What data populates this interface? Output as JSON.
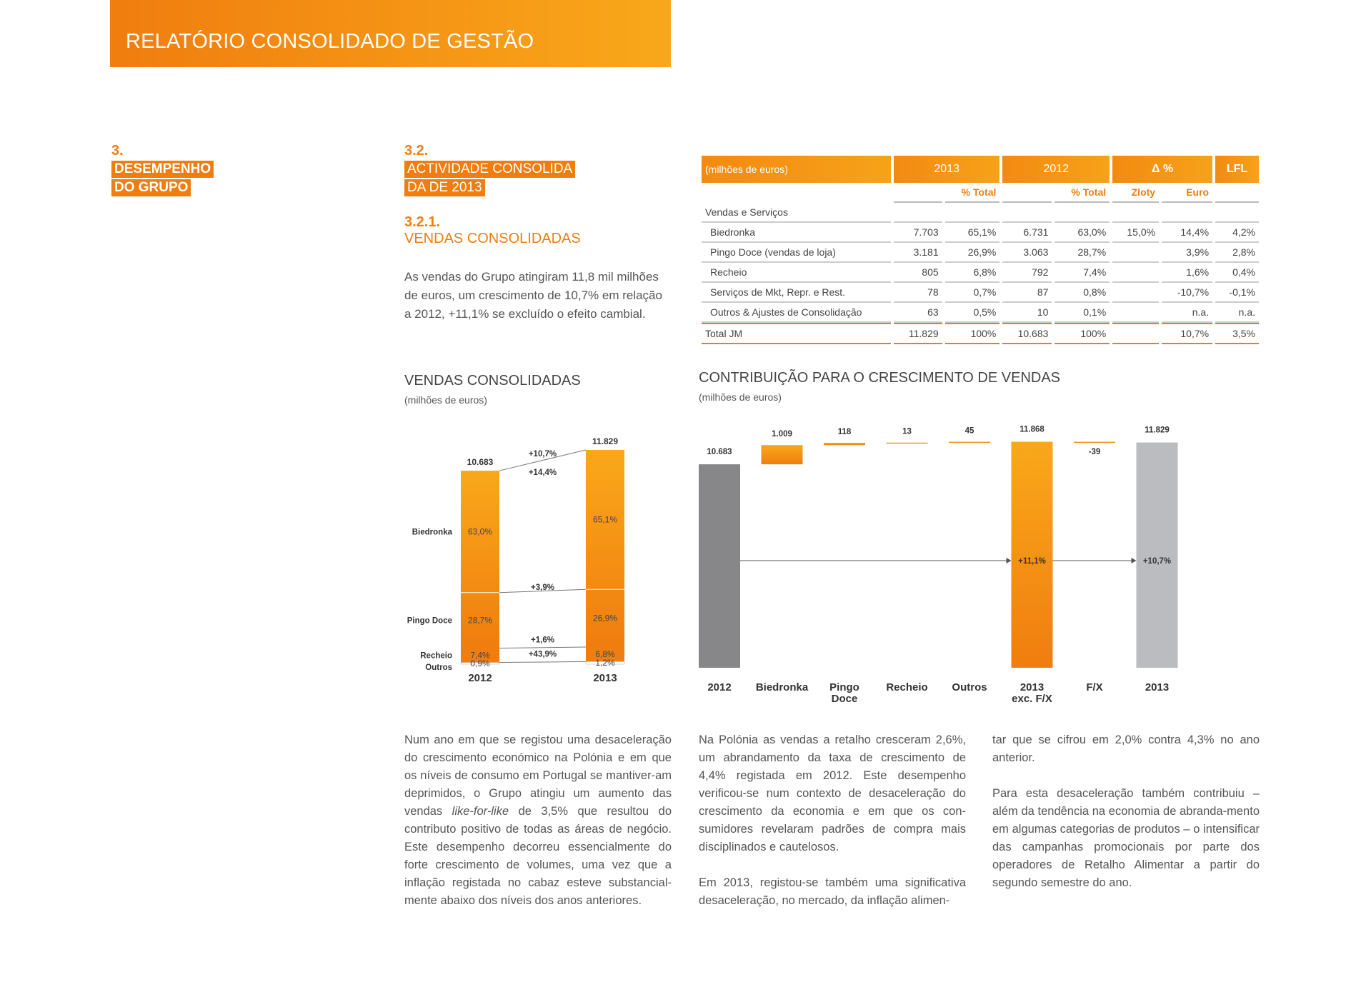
{
  "header": {
    "title": "RELATÓRIO CONSOLIDADO DE GESTÃO"
  },
  "section": {
    "number": "3.",
    "title_line1": "DESEMPENHO",
    "title_line2": "DO GRUPO"
  },
  "subsection": {
    "number": "3.2.",
    "title_line1": "ACTIVIDADE CONSOLIDA",
    "title_line2": "DA DE 2013"
  },
  "subsubsection": {
    "number": "3.2.1.",
    "title": "VENDAS CONSOLIDADAS"
  },
  "intro_text": "As vendas do Grupo atingiram 11,8 mil milhões de euros, um crescimento de 10,7% em relação a 2012, +11,1% se excluído o efeito cambial.",
  "table": {
    "header": {
      "unit": "(milhões de euros)",
      "y2013": "2013",
      "y2012": "2012",
      "delta": "Δ %",
      "lfl": "LFL"
    },
    "subheader": {
      "pct_total_2013": "% Total",
      "pct_total_2012": "% Total",
      "zloty": "Zloty",
      "euro": "Euro"
    },
    "group_label": "Vendas e Serviços",
    "rows": [
      {
        "label": "Biedronka",
        "v2013": "7.703",
        "p2013": "65,1%",
        "v2012": "6.731",
        "p2012": "63,0%",
        "zloty": "15,0%",
        "euro": "14,4%",
        "lfl": "4,2%"
      },
      {
        "label": "Pingo Doce (vendas de loja)",
        "v2013": "3.181",
        "p2013": "26,9%",
        "v2012": "3.063",
        "p2012": "28,7%",
        "zloty": "",
        "euro": "3,9%",
        "lfl": "2,8%"
      },
      {
        "label": "Recheio",
        "v2013": "805",
        "p2013": "6,8%",
        "v2012": "792",
        "p2012": "7,4%",
        "zloty": "",
        "euro": "1,6%",
        "lfl": "0,4%"
      },
      {
        "label": "Serviços de Mkt, Repr. e Rest.",
        "v2013": "78",
        "p2013": "0,7%",
        "v2012": "87",
        "p2012": "0,8%",
        "zloty": "",
        "euro": "-10,7%",
        "lfl": "-0,1%"
      },
      {
        "label": "Outros & Ajustes de Consolidação",
        "v2013": "63",
        "p2013": "0,5%",
        "v2012": "10",
        "p2012": "0,1%",
        "zloty": "",
        "euro": "n.a.",
        "lfl": "n.a."
      }
    ],
    "total": {
      "label": "Total JM",
      "v2013": "11.829",
      "p2013": "100%",
      "v2012": "10.683",
      "p2012": "100%",
      "zloty": "",
      "euro": "10,7%",
      "lfl": "3,5%"
    }
  },
  "chart_data": [
    {
      "type": "bar",
      "title": "VENDAS CONSOLIDADAS",
      "subtitle": "(milhões de euros)",
      "categories": [
        "2012",
        "2013"
      ],
      "totals": [
        10683,
        11829
      ],
      "total_labels": [
        "10.683",
        "11.829"
      ],
      "series": [
        {
          "name": "Biedronka",
          "shares": [
            63.0,
            65.1
          ],
          "labels": [
            "63,0%",
            "65,1%"
          ]
        },
        {
          "name": "Pingo Doce",
          "shares": [
            28.7,
            26.9
          ],
          "labels": [
            "28,7%",
            "26,9%"
          ]
        },
        {
          "name": "Recheio",
          "shares": [
            7.4,
            6.8
          ],
          "labels": [
            "7,4%",
            "6,8%"
          ]
        },
        {
          "name": "Outros",
          "shares": [
            0.9,
            1.2
          ],
          "labels": [
            "0,9%",
            "1,2%"
          ]
        }
      ],
      "growth_labels": {
        "total": "+10,7%",
        "biedronka": "+14,4%",
        "pingo_doce": "+3,9%",
        "recheio": "+1,6%",
        "outros": "+43,9%"
      },
      "colors": {
        "top": "#f9a81a",
        "bottom": "#f07d0f",
        "recheio": "#f07d0f"
      }
    },
    {
      "type": "bar",
      "title": "CONTRIBUIÇÃO PARA O CRESCIMENTO DE VENDAS",
      "subtitle": "(milhões de euros)",
      "categories": [
        "2012",
        "Biedronka",
        "Pingo Doce",
        "Recheio",
        "Outros",
        "2013 exc. F/X",
        "F/X",
        "2013"
      ],
      "category_lines": [
        [
          "2012"
        ],
        [
          "Biedronka"
        ],
        [
          "Pingo",
          "Doce"
        ],
        [
          "Recheio"
        ],
        [
          "Outros"
        ],
        [
          "2013",
          "exc. F/X"
        ],
        [
          "F/X"
        ],
        [
          "2013"
        ]
      ],
      "values": [
        10683,
        1009,
        118,
        13,
        45,
        11868,
        -39,
        11829
      ],
      "value_labels": [
        "10.683",
        "1.009",
        "118",
        "13",
        "45",
        "11.868",
        "-39",
        "11.829"
      ],
      "kinds": [
        "total",
        "delta",
        "delta",
        "delta",
        "delta",
        "total",
        "delta",
        "total"
      ],
      "growth_labels": {
        "exc_fx": "+11,1%",
        "total": "+10,7%"
      },
      "colors": {
        "base": "#87878a",
        "final": "#bbbcc0",
        "orange_top": "#f9a81a",
        "orange_bottom": "#f07d0f"
      }
    }
  ],
  "columns": {
    "col1_html": "Num ano em que se registou uma desaceleração do crescimento económico na Polónia e em que os níveis de consumo em Portugal se mantiver-am deprimidos, o Grupo atingiu um aumento das vendas <i>like-for-like</i> de 3,5% que resultou do contributo positivo de todas as áreas de negócio. Este desempenho decorreu essencialmente do forte crescimento de volumes, uma vez que a inflação registada no cabaz esteve substancial-mente abaixo dos níveis dos anos anteriores.",
    "col2_p1": "Na Polónia as vendas a retalho cresceram 2,6%, um abrandamento da taxa de crescimento de 4,4% registada em 2012. Este desempenho verificou-se num contexto de desaceleração do crescimento da economia e em que os con-sumidores revelaram padrões de compra mais disciplinados e cautelosos.",
    "col2_p2": "Em 2013, registou-se também uma significativa desaceleração, no mercado, da inflação alimen-",
    "col3_p1": "tar que se cifrou em 2,0% contra 4,3% no ano anterior.",
    "col3_p2": "Para esta desaceleração também contribuiu – além da tendência na economia de abranda-mento em algumas categorias de produtos – o intensificar das campanhas promocionais por parte dos operadores de Retalho Alimentar a partir do segundo semestre do ano."
  }
}
